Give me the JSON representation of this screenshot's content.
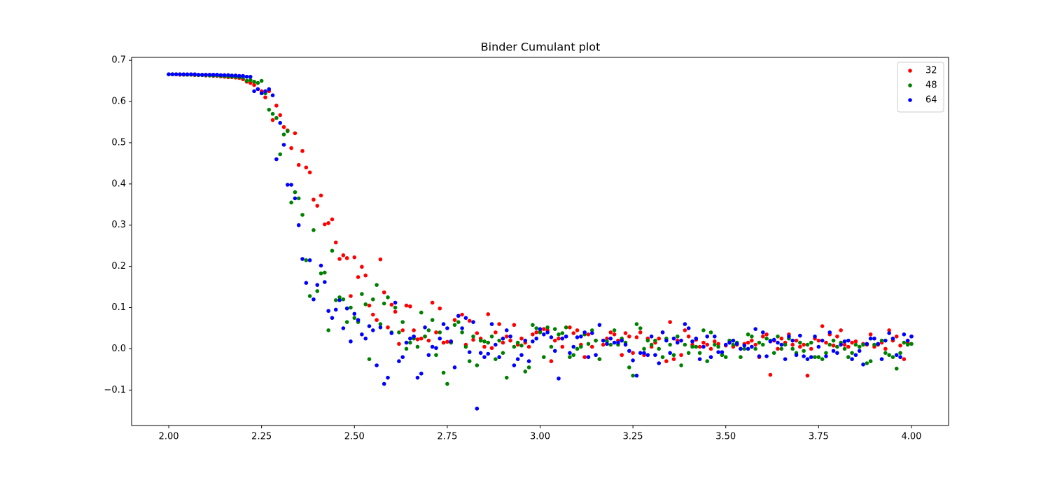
{
  "chart_data": {
    "type": "scatter",
    "title": "Binder Cumulant plot",
    "x": [
      2,
      2.01,
      2.02,
      2.03,
      2.04,
      2.05,
      2.06,
      2.07,
      2.08,
      2.09,
      2.1,
      2.11,
      2.12,
      2.13,
      2.14,
      2.15,
      2.16,
      2.17,
      2.18,
      2.19,
      2.2,
      2.21,
      2.22,
      2.23,
      2.24,
      2.25,
      2.26,
      2.27,
      2.28,
      2.29,
      2.3,
      2.31,
      2.32,
      2.33,
      2.34,
      2.35,
      2.36,
      2.37,
      2.38,
      2.39,
      2.4,
      2.41,
      2.42,
      2.43,
      2.44,
      2.45,
      2.46,
      2.47,
      2.48,
      2.49,
      2.5,
      2.51,
      2.52,
      2.53,
      2.54,
      2.55,
      2.56,
      2.57,
      2.58,
      2.59,
      2.6,
      2.61,
      2.62,
      2.63,
      2.64,
      2.65,
      2.66,
      2.67,
      2.68,
      2.69,
      2.7,
      2.71,
      2.72,
      2.73,
      2.74,
      2.75,
      2.76,
      2.77,
      2.78,
      2.79,
      2.8,
      2.81,
      2.82,
      2.83,
      2.84,
      2.85,
      2.86,
      2.87,
      2.88,
      2.89,
      2.9,
      2.91,
      2.92,
      2.93,
      2.94,
      2.95,
      2.96,
      2.97,
      2.98,
      2.99,
      3,
      3.01,
      3.02,
      3.03,
      3.04,
      3.05,
      3.06,
      3.07,
      3.08,
      3.09,
      3.1,
      3.11,
      3.12,
      3.13,
      3.14,
      3.15,
      3.16,
      3.17,
      3.18,
      3.19,
      3.2,
      3.21,
      3.22,
      3.23,
      3.24,
      3.25,
      3.26,
      3.27,
      3.28,
      3.29,
      3.3,
      3.31,
      3.32,
      3.33,
      3.34,
      3.35,
      3.36,
      3.37,
      3.38,
      3.39,
      3.4,
      3.41,
      3.42,
      3.43,
      3.44,
      3.45,
      3.46,
      3.47,
      3.48,
      3.49,
      3.5,
      3.51,
      3.52,
      3.53,
      3.54,
      3.55,
      3.56,
      3.57,
      3.58,
      3.59,
      3.6,
      3.61,
      3.62,
      3.63,
      3.64,
      3.65,
      3.66,
      3.67,
      3.68,
      3.69,
      3.7,
      3.71,
      3.72,
      3.73,
      3.74,
      3.75,
      3.76,
      3.77,
      3.78,
      3.79,
      3.8,
      3.81,
      3.82,
      3.83,
      3.84,
      3.85,
      3.86,
      3.87,
      3.88,
      3.89,
      3.9,
      3.91,
      3.92,
      3.93,
      3.94,
      3.95,
      3.96,
      3.97,
      3.98,
      3.99,
      4
    ],
    "series": [
      {
        "name": "32",
        "color": "#ff0000",
        "values": [
          0.666,
          0.666,
          0.666,
          0.665,
          0.665,
          0.665,
          0.665,
          0.664,
          0.664,
          0.664,
          0.663,
          0.663,
          0.662,
          0.662,
          0.661,
          0.66,
          0.659,
          0.659,
          0.658,
          0.657,
          0.654,
          0.648,
          0.645,
          0.64,
          0.63,
          0.625,
          0.61,
          0.625,
          0.555,
          0.59,
          0.567,
          0.538,
          0.53,
          0.487,
          0.523,
          0.446,
          0.48,
          0.44,
          0.428,
          0.362,
          0.347,
          0.372,
          0.302,
          0.305,
          0.314,
          0.258,
          0.218,
          0.227,
          0.22,
          0.128,
          0.222,
          0.174,
          0.199,
          0.178,
          0.105,
          0.083,
          0.07,
          0.217,
          0.137,
          0.052,
          0.107,
          0.09,
          0.012,
          0.045,
          0.105,
          0.103,
          0.045,
          0.023,
          0.025,
          0.03,
          0.02,
          0.112,
          0.04,
          0.098,
          0.015,
          0.017,
          0.018,
          0.07,
          0.08,
          0.083,
          0.01,
          0.068,
          0.022,
          0.038,
          0.025,
          0.005,
          0.084,
          0.002,
          0.04,
          0.06,
          0.015,
          0.03,
          0.02,
          0.058,
          0.01,
          0.025,
          0.015,
          0.005,
          0.035,
          0.04,
          0.042,
          0.048,
          0.045,
          -0.03,
          0.02,
          0.025,
          0.005,
          0.03,
          0.052,
          0.038,
          0.045,
          0.01,
          -0.02,
          0.035,
          0.005,
          0.02,
          -0.025,
          0.01,
          0.025,
          0.04,
          0.035,
          0.02,
          -0.015,
          0.038,
          0.03,
          -0.01,
          0.028,
          0.04,
          -0.015,
          0.025,
          0.005,
          0.015,
          0.025,
          0.04,
          -0.03,
          0.065,
          -0.025,
          0.02,
          -0.015,
          0.045,
          0.03,
          0.01,
          0.022,
          0.005,
          0.015,
          0.01,
          0.0,
          0.018,
          0.012,
          -0.015,
          0.008,
          0.015,
          0.005,
          0.01,
          0.0,
          0.012,
          0.015,
          0.02,
          0.01,
          -0.02,
          0.03,
          0.035,
          -0.063,
          0.02,
          0.0,
          0.025,
          0.015,
          0.035,
          0.01,
          0.02,
          0.005,
          0.01,
          -0.065,
          0.0,
          0.025,
          0.02,
          0.055,
          0.015,
          0.035,
          0.008,
          0.03,
          0.045,
          0.01,
          0.005,
          0.015,
          0.018,
          0.005,
          0.012,
          0.01,
          0.035,
          0.005,
          0.01,
          0.015,
          0.0,
          0.045,
          0.02,
          0.03,
          0.008,
          -0.025,
          0.015,
          0.03
        ]
      },
      {
        "name": "48",
        "color": "#008000",
        "values": [
          0.666,
          0.666,
          0.666,
          0.666,
          0.665,
          0.665,
          0.665,
          0.665,
          0.664,
          0.664,
          0.664,
          0.663,
          0.663,
          0.663,
          0.662,
          0.662,
          0.661,
          0.66,
          0.66,
          0.659,
          0.658,
          0.65,
          0.652,
          0.648,
          0.645,
          0.65,
          0.62,
          0.58,
          0.57,
          0.56,
          0.472,
          0.52,
          0.528,
          0.355,
          0.38,
          0.365,
          0.325,
          0.215,
          0.128,
          0.288,
          0.14,
          0.183,
          0.185,
          0.045,
          0.238,
          0.118,
          0.125,
          0.12,
          0.065,
          0.1,
          0.075,
          0.065,
          0.133,
          0.108,
          -0.025,
          0.12,
          0.155,
          0.06,
          0.11,
          0.125,
          0.04,
          0.1,
          0.04,
          0.065,
          0.0,
          0.015,
          0.025,
          0.005,
          0.088,
          0.03,
          0.045,
          0.07,
          -0.015,
          0.04,
          -0.058,
          -0.085,
          0.015,
          0.058,
          0.065,
          0.04,
          0.005,
          -0.03,
          0.03,
          -0.04,
          0.02,
          0.018,
          0.015,
          0.03,
          -0.025,
          0.02,
          -0.01,
          -0.07,
          0.03,
          0.005,
          0.015,
          0.008,
          -0.055,
          -0.045,
          0.058,
          0.05,
          0.04,
          -0.02,
          0.052,
          0.005,
          0.048,
          0.035,
          0.038,
          0.052,
          -0.02,
          -0.015,
          0.0,
          0.005,
          0.035,
          0.012,
          0.045,
          0.02,
          -0.025,
          0.02,
          0.018,
          0.01,
          0.045,
          0.01,
          0.025,
          0.015,
          -0.045,
          -0.065,
          0.06,
          0.05,
          0.0,
          0.02,
          0.01,
          0.02,
          0.0,
          -0.02,
          0.025,
          0.01,
          -0.015,
          0.03,
          -0.04,
          0.01,
          -0.01,
          0.005,
          0.005,
          -0.01,
          0.045,
          -0.03,
          0.04,
          0.01,
          0.005,
          -0.015,
          -0.02,
          0.02,
          0.01,
          0.015,
          -0.02,
          0.0,
          0.035,
          0.03,
          0.0,
          0.015,
          0.01,
          0.025,
          0.02,
          -0.01,
          0.03,
          0.0,
          0.01,
          0.025,
          0.0,
          -0.01,
          0.015,
          -0.005,
          0.01,
          0.015,
          -0.02,
          -0.02,
          -0.025,
          -0.01,
          0.01,
          0.02,
          0.005,
          0.015,
          0.0,
          -0.02,
          -0.01,
          0.01,
          0.005,
          0.01,
          -0.035,
          -0.03,
          0.01,
          0.012,
          0.02,
          -0.01,
          -0.015,
          -0.02,
          -0.048,
          -0.01,
          0.015,
          0.01,
          0.012
        ]
      },
      {
        "name": "64",
        "color": "#0000ff",
        "values": [
          0.666,
          0.666,
          0.666,
          0.666,
          0.666,
          0.666,
          0.666,
          0.666,
          0.665,
          0.665,
          0.665,
          0.665,
          0.665,
          0.665,
          0.664,
          0.664,
          0.664,
          0.663,
          0.663,
          0.662,
          0.662,
          0.66,
          0.66,
          0.625,
          0.63,
          0.62,
          0.625,
          0.63,
          0.615,
          0.46,
          0.548,
          0.495,
          0.398,
          0.398,
          0.365,
          0.3,
          0.218,
          0.16,
          0.215,
          0.12,
          0.155,
          0.202,
          0.162,
          0.092,
          0.075,
          0.095,
          0.118,
          0.05,
          0.098,
          0.018,
          0.085,
          0.07,
          0.035,
          0.025,
          0.055,
          0.045,
          -0.04,
          0.052,
          -0.085,
          -0.07,
          0.038,
          0.112,
          -0.03,
          -0.02,
          0.015,
          0.025,
          0.03,
          -0.07,
          -0.06,
          0.052,
          -0.015,
          0.005,
          0.002,
          0.025,
          0.06,
          0.05,
          0.018,
          -0.045,
          0.08,
          0.05,
          0.075,
          -0.008,
          0.065,
          -0.145,
          -0.01,
          -0.02,
          -0.012,
          0.06,
          0.01,
          -0.02,
          0.025,
          0.045,
          0.03,
          -0.04,
          -0.025,
          -0.015,
          0.02,
          -0.03,
          0.018,
          0.025,
          0.048,
          0.035,
          0.04,
          0.028,
          -0.005,
          -0.072,
          0.025,
          0.03,
          -0.01,
          0.005,
          0.028,
          0.03,
          0.04,
          -0.02,
          0.038,
          -0.015,
          0.058,
          0.02,
          0.012,
          0.025,
          0.015,
          0.015,
          0.02,
          0.01,
          -0.005,
          -0.028,
          -0.065,
          -0.01,
          -0.01,
          -0.015,
          0.03,
          -0.015,
          -0.035,
          0.04,
          0.02,
          -0.01,
          0.025,
          0.015,
          0.02,
          0.06,
          0.05,
          0.018,
          0.025,
          -0.025,
          0.005,
          0.03,
          -0.02,
          0.03,
          -0.008,
          -0.008,
          0.01,
          0.015,
          0.02,
          0.012,
          0.0,
          0.008,
          0.0,
          0.005,
          0.048,
          -0.018,
          0.04,
          -0.018,
          0.018,
          0.022,
          0.015,
          0.01,
          -0.025,
          0.03,
          0.02,
          -0.015,
          0.032,
          -0.018,
          -0.025,
          -0.02,
          0.03,
          0.005,
          0.02,
          -0.018,
          0.04,
          -0.005,
          -0.01,
          0.01,
          0.018,
          0.02,
          -0.025,
          -0.015,
          -0.005,
          -0.038,
          0.012,
          0.025,
          0.025,
          0.012,
          -0.025,
          0.02,
          0.038,
          0.025,
          -0.015,
          -0.02,
          0.035,
          0.02,
          0.03
        ]
      }
    ],
    "xlim": [
      1.9,
      4.1
    ],
    "xticks": [
      {
        "value": 2,
        "label": "2.00"
      },
      {
        "value": 2.25,
        "label": "2.25"
      },
      {
        "value": 2.5,
        "label": "2.50"
      },
      {
        "value": 2.75,
        "label": "2.75"
      },
      {
        "value": 3,
        "label": "3.00"
      },
      {
        "value": 3.25,
        "label": "3.25"
      },
      {
        "value": 3.5,
        "label": "3.50"
      },
      {
        "value": 3.75,
        "label": "3.75"
      },
      {
        "value": 4,
        "label": "4.00"
      }
    ],
    "ylim": [
      -0.186,
      0.707
    ],
    "yticks": [
      {
        "value": -0.1,
        "label": "−0.1"
      },
      {
        "value": 0,
        "label": "0.0"
      },
      0.1,
      0.2,
      0.3,
      0.4,
      0.5,
      0.6,
      0.7
    ],
    "legend": "upper right"
  }
}
